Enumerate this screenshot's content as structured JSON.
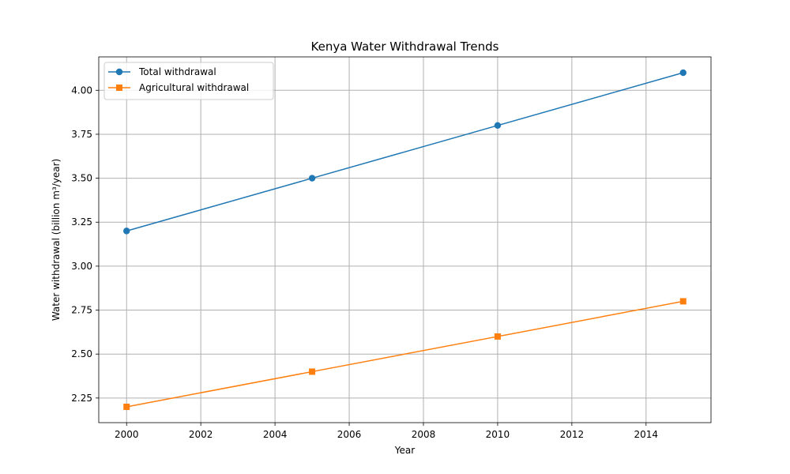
{
  "chart_data": {
    "type": "line",
    "title": "Kenya Water Withdrawal Trends",
    "xlabel": "Year",
    "ylabel": "Water withdrawal (billion m³/year)",
    "x": [
      2000,
      2005,
      2010,
      2015
    ],
    "xlim": [
      1999.25,
      2015.75
    ],
    "ylim": [
      2.11,
      4.19
    ],
    "xticks": [
      2000,
      2002,
      2004,
      2006,
      2008,
      2010,
      2012,
      2014
    ],
    "yticks": [
      2.25,
      2.5,
      2.75,
      3.0,
      3.25,
      3.5,
      3.75,
      4.0
    ],
    "grid": true,
    "legend_position": "top-left",
    "series": [
      {
        "name": "Total withdrawal",
        "values": [
          3.2,
          3.5,
          3.8,
          4.1
        ],
        "color": "#1f77b4",
        "marker": "circle"
      },
      {
        "name": "Agricultural withdrawal",
        "values": [
          2.2,
          2.4,
          2.6,
          2.8
        ],
        "color": "#ff7f0e",
        "marker": "square"
      }
    ]
  }
}
